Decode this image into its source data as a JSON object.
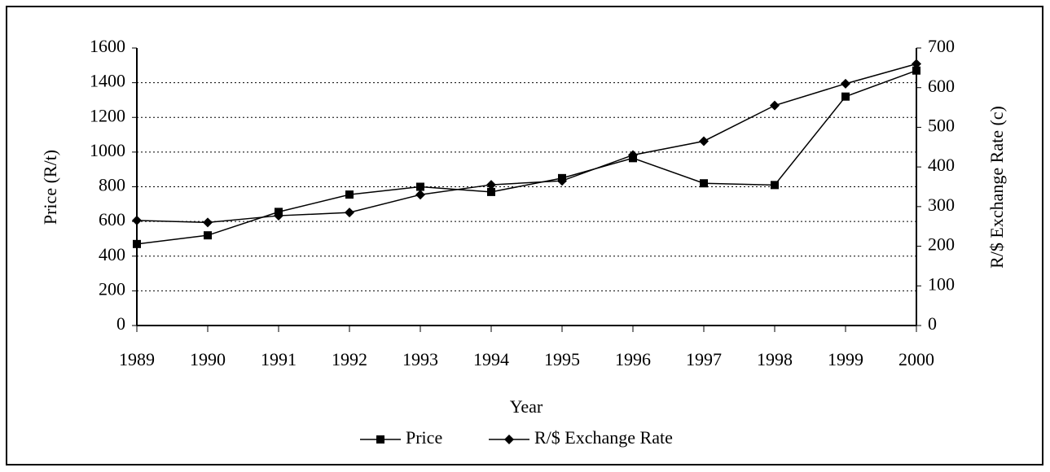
{
  "chart_data": {
    "type": "line",
    "x_label": "Year",
    "y_label": "Price (R/t)",
    "y2_label": "R/$ Exchange Rate (c)",
    "categories": [
      "1989",
      "1990",
      "1991",
      "1992",
      "1993",
      "1994",
      "1995",
      "1996",
      "1997",
      "1998",
      "1999",
      "2000"
    ],
    "series": [
      {
        "name": "Price",
        "color": "#000000",
        "marker": "square",
        "values": [
          470,
          520,
          655,
          755,
          800,
          770,
          850,
          965,
          820,
          810,
          1320,
          1470
        ]
      },
      {
        "name": "R/$ Exchange Rate",
        "color": "#000000",
        "marker": "diamond",
        "axis": "y2",
        "values": [
          265,
          260,
          277,
          285,
          330,
          355,
          365,
          430,
          465,
          555,
          610,
          660
        ]
      }
    ],
    "ylim": [
      0,
      1600
    ],
    "yticks": [
      0,
      200,
      400,
      600,
      800,
      1000,
      1200,
      1400,
      1600
    ],
    "y2lim": [
      0,
      700
    ],
    "y2ticks": [
      0,
      100,
      200,
      300,
      400,
      500,
      600,
      700
    ],
    "grid": true,
    "legend": "bottom"
  }
}
